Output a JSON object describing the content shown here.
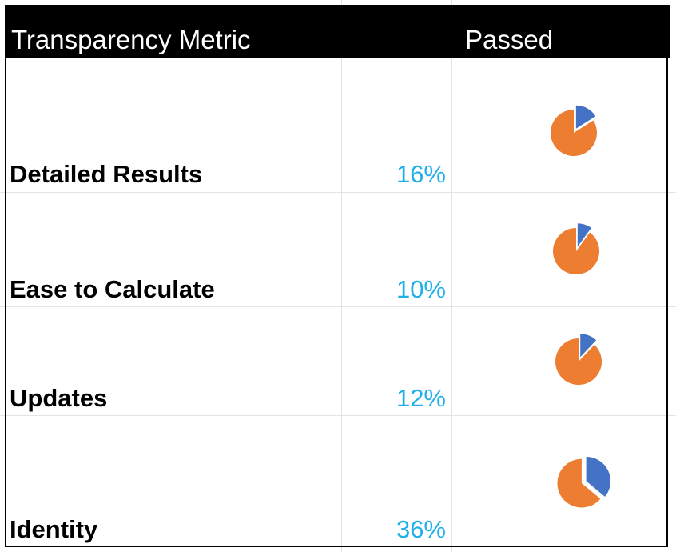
{
  "header": {
    "metric_col": "Transparency Metric",
    "passed_col": "Passed"
  },
  "colors": {
    "header_bg": "#000000",
    "header_text": "#ffffff",
    "percent_text": "#20b0e8",
    "pie_passed": "#4472c4",
    "pie_remaining": "#ed7d31"
  },
  "chart_data": {
    "type": "table",
    "columns": [
      "Transparency Metric",
      "Passed"
    ],
    "rows": [
      {
        "metric": "Detailed Results",
        "passed_label": "16%",
        "passed": 16
      },
      {
        "metric": "Ease to Calculate",
        "passed_label": "10%",
        "passed": 10
      },
      {
        "metric": "Updates",
        "passed_label": "12%",
        "passed": 12
      },
      {
        "metric": "Identity",
        "passed_label": "36%",
        "passed": 36
      }
    ],
    "pie_series": [
      "passed",
      "remaining"
    ]
  }
}
